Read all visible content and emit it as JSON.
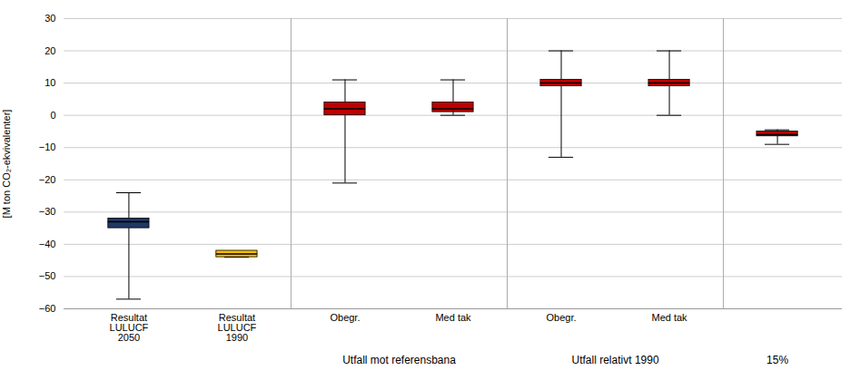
{
  "chart_data": {
    "type": "box",
    "categories": [
      "Resultat\nLULUCF\n2050",
      "Resultat\nLULUCF\n1990",
      "Obegr.",
      "Med tak",
      "Obegr.",
      "Med tak",
      null
    ],
    "q1": [
      -35,
      -44,
      0,
      1,
      9,
      9,
      -6.5
    ],
    "q3": [
      -32,
      -42,
      4,
      4,
      11,
      11,
      -5
    ],
    "median": [
      -33,
      -43,
      2,
      2,
      10,
      10,
      -6
    ],
    "whisker_low": [
      -57,
      -44,
      -21,
      0,
      -13,
      0,
      -9
    ],
    "whisker_high": [
      -24,
      -42,
      11,
      11,
      20,
      20,
      -4.5
    ],
    "colors": [
      "#1F3864",
      "#FFC000",
      "#C00000",
      "#C00000",
      "#C00000",
      "#C00000",
      "#C00000"
    ],
    "separators": [
      2.5,
      4.5,
      6.5
    ],
    "annotations": [
      {
        "text": "Utfall mot referensbana",
        "x": 3.5
      },
      {
        "text": "Utfall relativt 1990",
        "x": 5.5
      },
      {
        "text": "15%",
        "x": 7.0
      }
    ],
    "ylabel": "[M ton CO₂-ekvivalenter]",
    "ylim": [
      -60,
      30
    ],
    "yticks": [
      -60,
      -50,
      -40,
      -30,
      -20,
      -10,
      0,
      10,
      20,
      30
    ],
    "grid": true
  }
}
